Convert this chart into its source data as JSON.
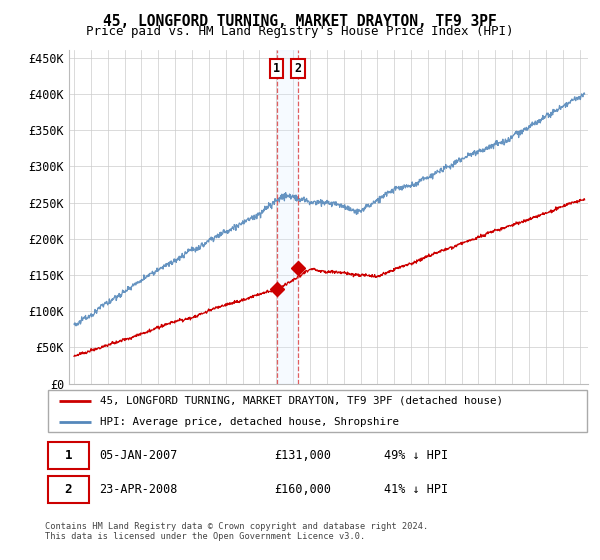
{
  "title": "45, LONGFORD TURNING, MARKET DRAYTON, TF9 3PF",
  "subtitle": "Price paid vs. HM Land Registry's House Price Index (HPI)",
  "ylabel_ticks": [
    "£0",
    "£50K",
    "£100K",
    "£150K",
    "£200K",
    "£250K",
    "£300K",
    "£350K",
    "£400K",
    "£450K"
  ],
  "ytick_values": [
    0,
    50000,
    100000,
    150000,
    200000,
    250000,
    300000,
    350000,
    400000,
    450000
  ],
  "ylim": [
    0,
    460000
  ],
  "xlim_start": 1994.7,
  "xlim_end": 2025.5,
  "hpi_color": "#5588bb",
  "price_color": "#cc0000",
  "vline1_x": 2007.02,
  "vline2_x": 2008.31,
  "shade_color": "#ddeeff",
  "point1_x": 2007.02,
  "point1_y": 131000,
  "point2_x": 2008.31,
  "point2_y": 160000,
  "legend_label1": "45, LONGFORD TURNING, MARKET DRAYTON, TF9 3PF (detached house)",
  "legend_label2": "HPI: Average price, detached house, Shropshire",
  "footer": "Contains HM Land Registry data © Crown copyright and database right 2024.\nThis data is licensed under the Open Government Licence v3.0.",
  "background_color": "#ffffff",
  "grid_color": "#cccccc",
  "title_fontsize": 10.5,
  "subtitle_fontsize": 9
}
